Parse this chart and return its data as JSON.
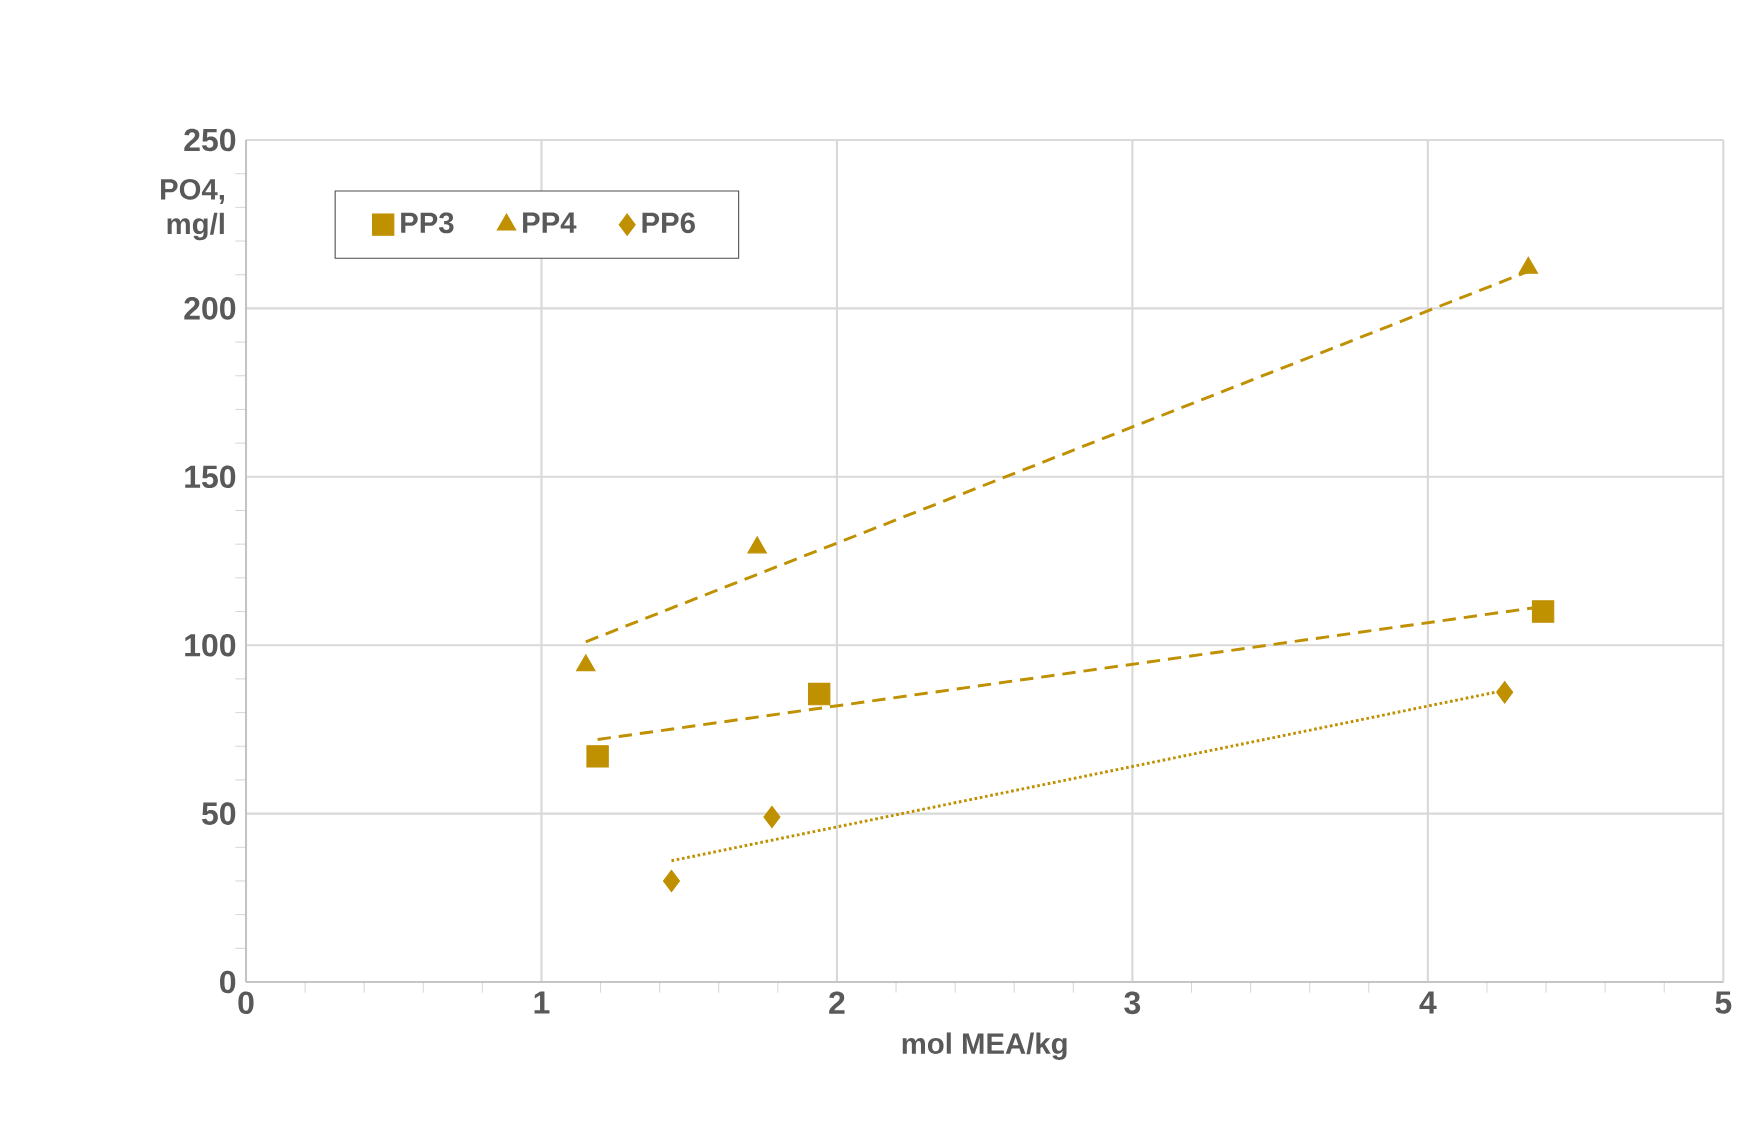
{
  "chart_data": {
    "type": "scatter",
    "xlabel": "mol MEA/kg",
    "ylabel": "PO4, mg/l",
    "xlim": [
      0,
      5
    ],
    "ylim": [
      0,
      250
    ],
    "xticks": [
      0,
      1,
      2,
      3,
      4,
      5
    ],
    "yticks": [
      0,
      50,
      100,
      150,
      200,
      250
    ],
    "grid": true,
    "legend": "top left",
    "series": [
      {
        "name": "PP3",
        "marker": "square",
        "color": "#bf9000",
        "x": [
          1.19,
          1.94,
          4.39
        ],
        "values": [
          67,
          85.5,
          110
        ]
      },
      {
        "name": "PP4",
        "marker": "triangle",
        "color": "#bf9000",
        "x": [
          1.15,
          1.73,
          4.34
        ],
        "values": [
          94,
          129,
          212
        ]
      },
      {
        "name": "PP6",
        "marker": "diamond",
        "color": "#bf9000",
        "x": [
          1.44,
          1.78,
          4.26
        ],
        "values": [
          30,
          49,
          86
        ]
      },
      {
        "type": "line",
        "line_style": "dashed",
        "color": "#bf9000",
        "x": [
          1.19,
          4.39
        ],
        "values": [
          72,
          111.5
        ]
      },
      {
        "type": "line",
        "line_style": "dashed",
        "color": "#bf9000",
        "x": [
          1.15,
          4.34
        ],
        "values": [
          101,
          211
        ]
      },
      {
        "type": "line",
        "line_style": "dotted",
        "color": "#bf9000",
        "x": [
          1.44,
          4.26
        ],
        "values": [
          36,
          86.6
        ]
      }
    ]
  }
}
